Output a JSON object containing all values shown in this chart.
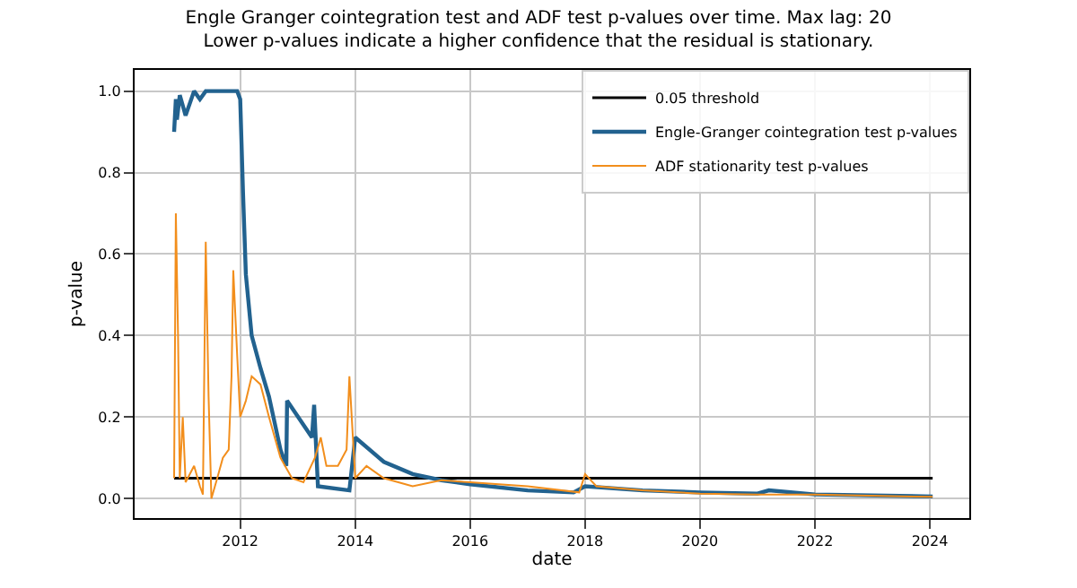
{
  "chart_data": {
    "type": "line",
    "title": "Engle Granger cointegration test and ADF test p-values over time. Max lag: 20",
    "subtitle": "Lower p-values indicate a higher confidence that the residual is stationary.",
    "xlabel": "date",
    "ylabel": "p-value",
    "xlim": [
      "2010-03-01",
      "2024-09-08"
    ],
    "xticks": [
      "2012",
      "2014",
      "2016",
      "2018",
      "2020",
      "2022",
      "2024"
    ],
    "ylim": [
      -0.048,
      1.052
    ],
    "yticks": [
      {
        "value": 0,
        "label": "0.0"
      },
      {
        "value": 0.2,
        "label": "0.2"
      },
      {
        "value": 0.4,
        "label": "0.4"
      },
      {
        "value": 0.6,
        "label": "0.6"
      },
      {
        "value": 0.8,
        "label": "0.8"
      },
      {
        "value": 1.0,
        "label": "1.0"
      }
    ],
    "grid": true,
    "legend": "top right",
    "series": [
      {
        "name": "0.05 threshold",
        "color": "#000000",
        "x": [
          "2010-11-07",
          "2024-01-19"
        ],
        "values": [
          0.05,
          0.05
        ]
      },
      {
        "name": "Engle-Granger cointegration test p-values",
        "color": "#22628f",
        "x": [
          "2010-11-07",
          "2010-11-18",
          "2010-11-25",
          "2010-12-13",
          "2011-01-19",
          "2011-03-14",
          "2011-04-20",
          "2011-05-27",
          "2011-12-13",
          "2012-01-01",
          "2012-01-19",
          "2012-02-06",
          "2012-03-14",
          "2012-05-09",
          "2012-07-02",
          "2012-09-13",
          "2012-10-20",
          "2012-10-25",
          "2013-04-01",
          "2013-04-15",
          "2013-05-09",
          "2013-11-25",
          "2014-01-01",
          "2014-07-02",
          "2015-01-01",
          "2015-07-02",
          "2016-01-01",
          "2017-01-01",
          "2017-10-20",
          "2018-01-01",
          "2019-01-01",
          "2020-01-01",
          "2021-01-01",
          "2021-03-14",
          "2022-01-01",
          "2024-01-19"
        ],
        "values": [
          0.9,
          0.98,
          0.93,
          0.99,
          0.94,
          1.0,
          0.98,
          1.0,
          1.0,
          0.98,
          0.75,
          0.55,
          0.4,
          0.32,
          0.25,
          0.12,
          0.08,
          0.24,
          0.15,
          0.23,
          0.03,
          0.02,
          0.15,
          0.09,
          0.06,
          0.045,
          0.035,
          0.02,
          0.015,
          0.03,
          0.02,
          0.015,
          0.012,
          0.02,
          0.01,
          0.005
        ]
      },
      {
        "name": "ADF stationarity test p-values",
        "color": "#f28e1c",
        "x": [
          "2010-11-07",
          "2010-11-18",
          "2010-12-02",
          "2010-12-13",
          "2011-01-01",
          "2011-01-19",
          "2011-03-14",
          "2011-04-20",
          "2011-05-09",
          "2011-05-27",
          "2011-06-14",
          "2011-07-02",
          "2011-08-08",
          "2011-09-13",
          "2011-10-20",
          "2011-11-07",
          "2011-11-18",
          "2011-12-13",
          "2012-01-01",
          "2012-02-06",
          "2012-03-14",
          "2012-05-09",
          "2012-07-02",
          "2012-09-13",
          "2012-11-25",
          "2013-02-06",
          "2013-04-20",
          "2013-05-27",
          "2013-07-02",
          "2013-09-13",
          "2013-11-07",
          "2013-11-25",
          "2014-01-01",
          "2014-03-14",
          "2014-07-02",
          "2015-01-01",
          "2015-07-02",
          "2016-01-01",
          "2017-01-01",
          "2017-11-25",
          "2018-01-01",
          "2018-03-14",
          "2019-01-01",
          "2020-01-01",
          "2021-01-01",
          "2022-01-01",
          "2024-01-19"
        ],
        "values": [
          0.05,
          0.7,
          0.4,
          0.05,
          0.2,
          0.04,
          0.08,
          0.03,
          0.01,
          0.63,
          0.25,
          0.0,
          0.05,
          0.1,
          0.12,
          0.3,
          0.56,
          0.35,
          0.2,
          0.24,
          0.3,
          0.28,
          0.2,
          0.1,
          0.05,
          0.04,
          0.1,
          0.15,
          0.08,
          0.08,
          0.12,
          0.3,
          0.05,
          0.08,
          0.05,
          0.03,
          0.045,
          0.04,
          0.03,
          0.015,
          0.06,
          0.03,
          0.02,
          0.012,
          0.01,
          0.01,
          0.004
        ]
      }
    ]
  }
}
